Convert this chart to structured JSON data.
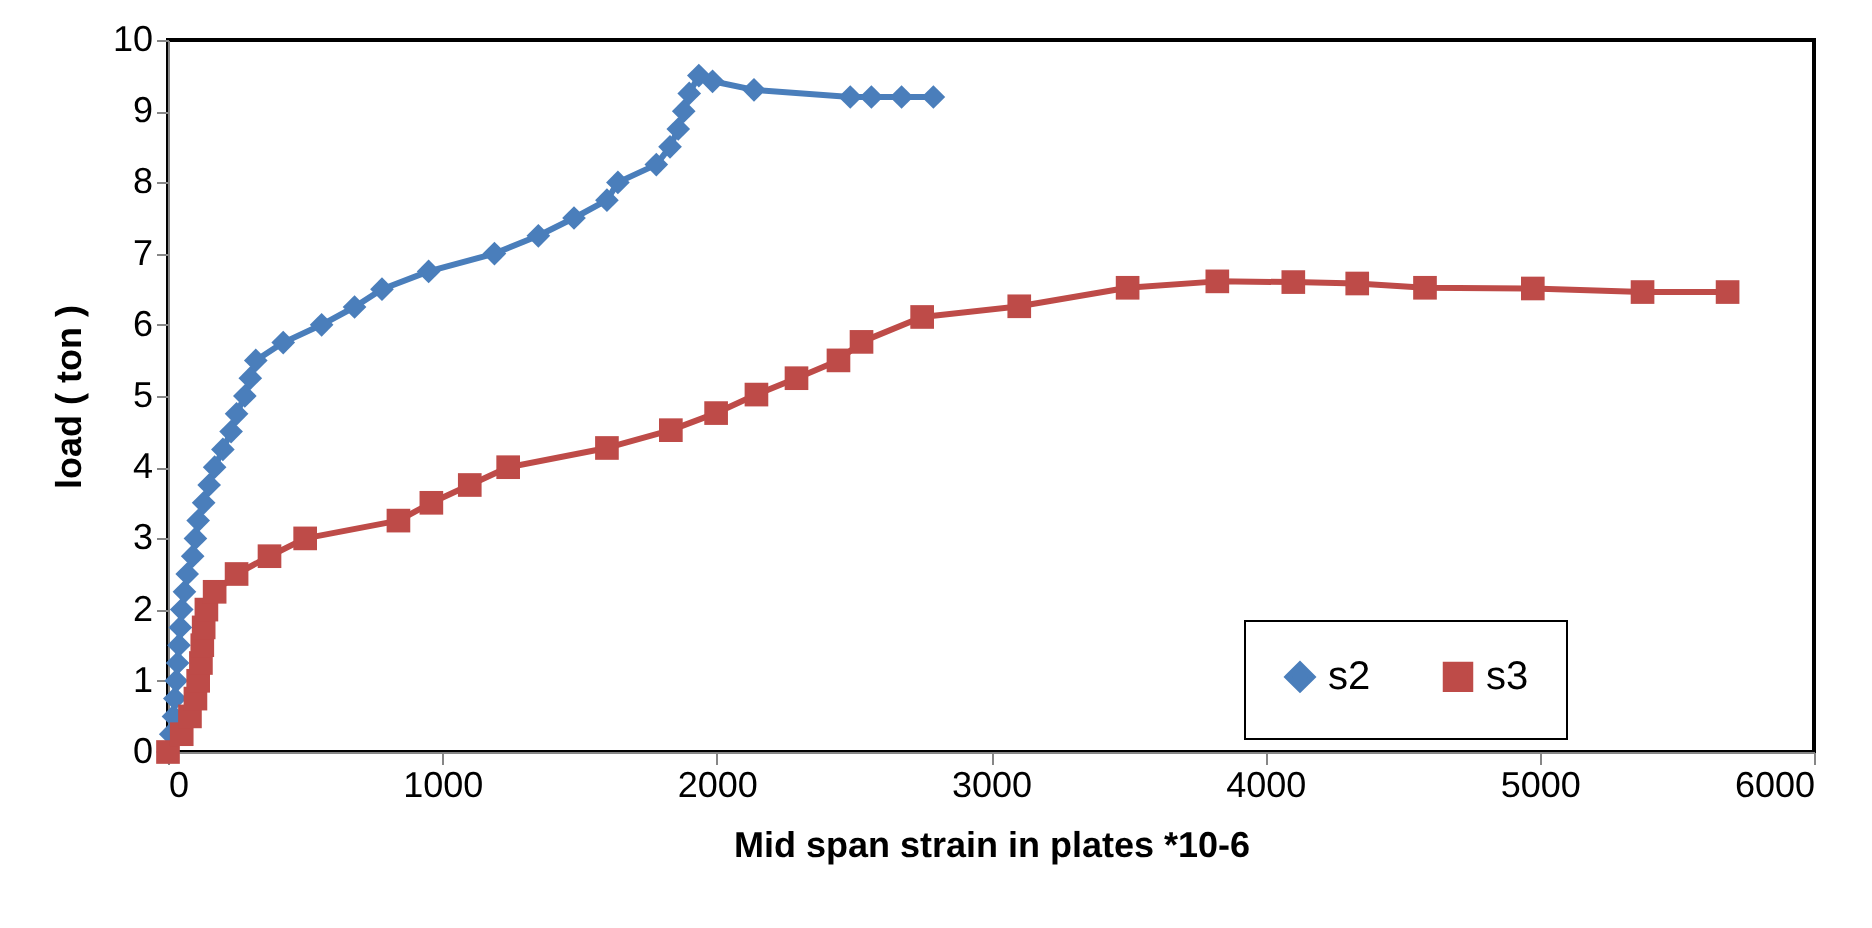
{
  "chart_data": {
    "type": "line",
    "xlabel": "Mid span strain in plates *10-6",
    "ylabel": "load ( ton )",
    "xlim": [
      0,
      6000
    ],
    "xticks": [
      0,
      1000,
      2000,
      3000,
      4000,
      5000,
      6000
    ],
    "ylim": [
      0,
      10
    ],
    "yticks": [
      0,
      1,
      2,
      3,
      4,
      5,
      6,
      7,
      8,
      9,
      10
    ],
    "grid": false,
    "legend": "bottom right",
    "line_style": "solid",
    "series": [
      {
        "name": "s2",
        "color": "#4a7ebb",
        "marker": "diamond",
        "x": [
          0,
          10,
          20,
          25,
          30,
          35,
          40,
          45,
          50,
          60,
          70,
          90,
          100,
          110,
          130,
          150,
          170,
          200,
          230,
          250,
          280,
          300,
          320,
          420,
          560,
          680,
          780,
          950,
          1190,
          1350,
          1480,
          1600,
          1640,
          1780,
          1830,
          1860,
          1880,
          1900,
          1935,
          1985,
          2136,
          2487,
          2564,
          2674,
          2790
        ],
        "values": [
          0,
          0.25,
          0.5,
          0.75,
          1.0,
          1.25,
          1.5,
          1.75,
          2.0,
          2.25,
          2.5,
          2.75,
          3.0,
          3.25,
          3.5,
          3.75,
          4.0,
          4.25,
          4.5,
          4.75,
          5.0,
          5.25,
          5.5,
          5.75,
          6.0,
          6.25,
          6.5,
          6.75,
          7.0,
          7.25,
          7.5,
          7.75,
          8.0,
          8.25,
          8.5,
          8.75,
          9.0,
          9.25,
          9.5,
          9.42,
          9.3,
          9.2,
          9.2,
          9.2,
          9.2
        ]
      },
      {
        "name": "s3",
        "color": "#be4b48",
        "marker": "square",
        "x": [
          0,
          50,
          80,
          100,
          110,
          120,
          125,
          130,
          140,
          170,
          250,
          370,
          500,
          840,
          960,
          1100,
          1240,
          1600,
          1833,
          1998,
          2145,
          2291,
          2444,
          2528,
          2749,
          3103,
          3498,
          3825,
          4102,
          4335,
          4582,
          4975,
          5375,
          5685
        ],
        "values": [
          0,
          0.25,
          0.5,
          0.75,
          1.0,
          1.25,
          1.5,
          1.75,
          2.0,
          2.25,
          2.5,
          2.75,
          3.0,
          3.25,
          3.5,
          3.75,
          4.0,
          4.27,
          4.52,
          4.76,
          5.02,
          5.25,
          5.5,
          5.76,
          6.11,
          6.26,
          6.52,
          6.61,
          6.6,
          6.58,
          6.52,
          6.51,
          6.46,
          6.46
        ]
      }
    ]
  }
}
